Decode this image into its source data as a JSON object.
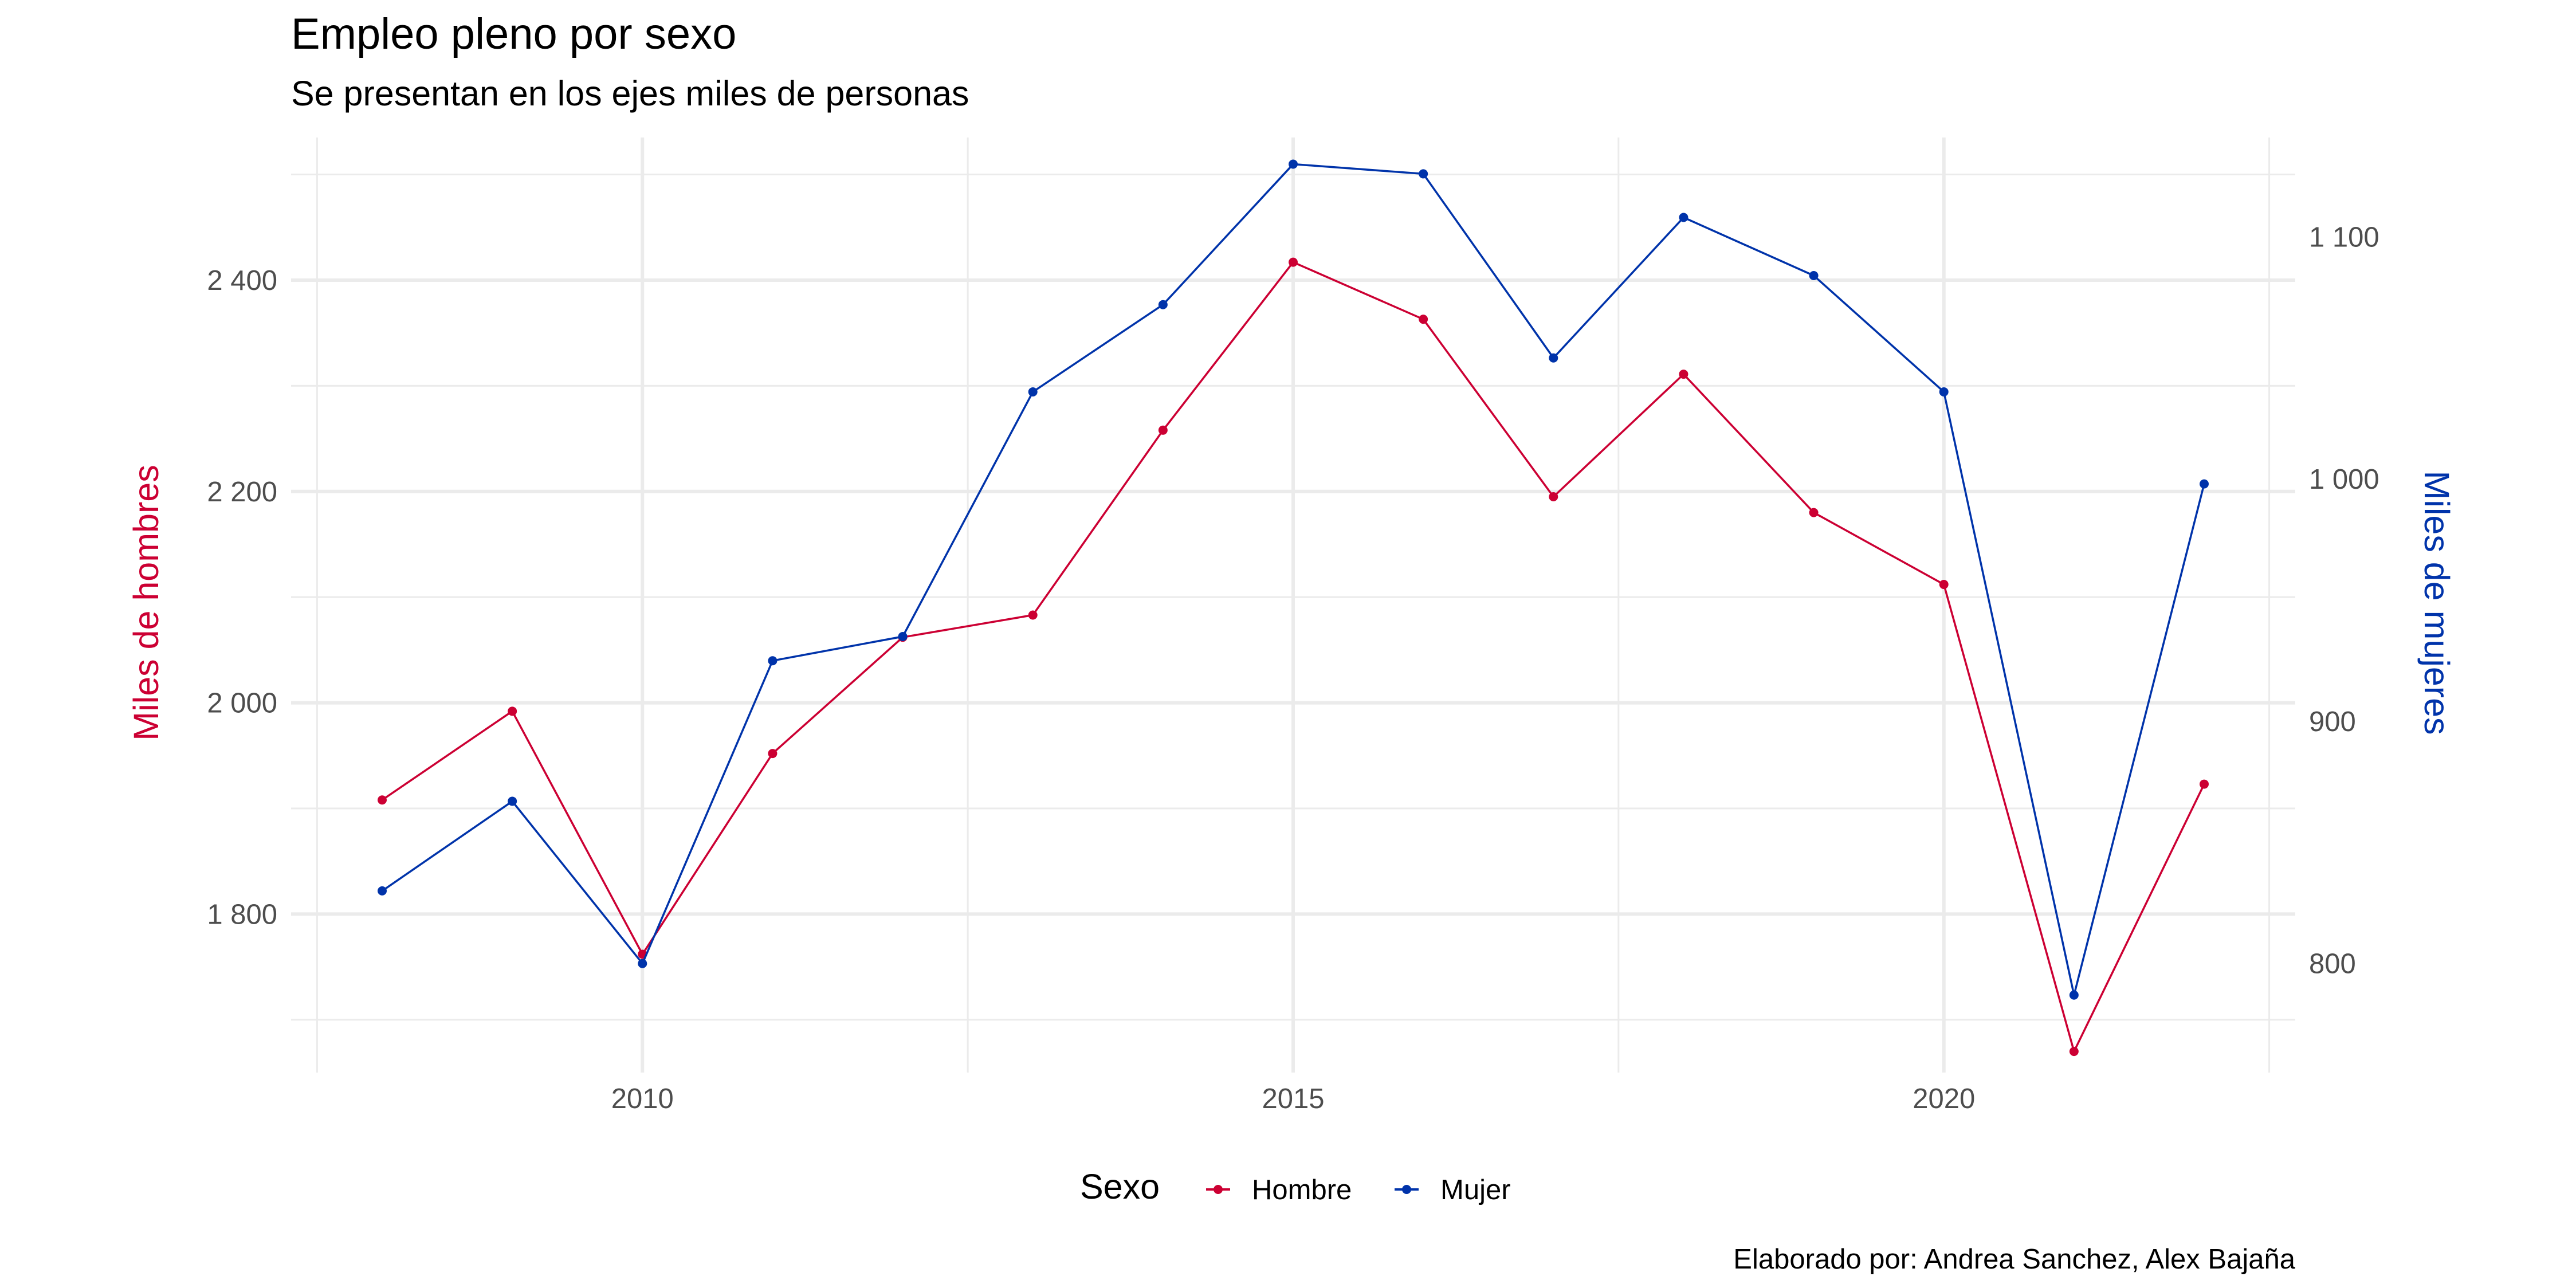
{
  "chart_data": {
    "type": "line",
    "title": "Empleo pleno por sexo",
    "subtitle": "Se presentan en los ejes miles de personas",
    "caption": "Elaborado por: Andrea Sanchez, Alex Bajaña",
    "x": [
      2008,
      2009,
      2010,
      2011,
      2012,
      2013,
      2014,
      2015,
      2016,
      2017,
      2018,
      2019,
      2020,
      2021,
      2022
    ],
    "x_ticks": [
      2010,
      2015,
      2020
    ],
    "x_tick_labels": [
      "2010",
      "2015",
      "2020"
    ],
    "xlim": [
      2007.3,
      2022.7
    ],
    "y_left": {
      "label": "Miles de hombres",
      "ticks": [
        1800,
        2000,
        2200,
        2400
      ],
      "tick_labels": [
        "1 800",
        "2 000",
        "2 200",
        "2 400"
      ],
      "lim": [
        1650,
        2535
      ],
      "color": "#cc0033"
    },
    "y_right": {
      "label": "Miles de mujeres",
      "ticks": [
        800,
        900,
        1000,
        1100
      ],
      "tick_labels": [
        "800",
        "900",
        "1 000",
        "1 100"
      ],
      "lim": [
        755,
        1141
      ],
      "color": "#0033aa"
    },
    "legend": {
      "title": "Sexo",
      "position": "bottom"
    },
    "grid": true,
    "series": [
      {
        "name": "Hombre",
        "axis": "left",
        "color": "#cc0033",
        "values": [
          1908,
          1992,
          1762,
          1952,
          2062,
          2083,
          2258,
          2417,
          2363,
          2195,
          2311,
          2180,
          2112,
          1670,
          1923
        ]
      },
      {
        "name": "Mujer",
        "axis": "right",
        "color": "#0033aa",
        "values": [
          830,
          867,
          800,
          925,
          935,
          1036,
          1072,
          1130,
          1126,
          1050,
          1108,
          1084,
          1036,
          787,
          998
        ]
      }
    ]
  }
}
